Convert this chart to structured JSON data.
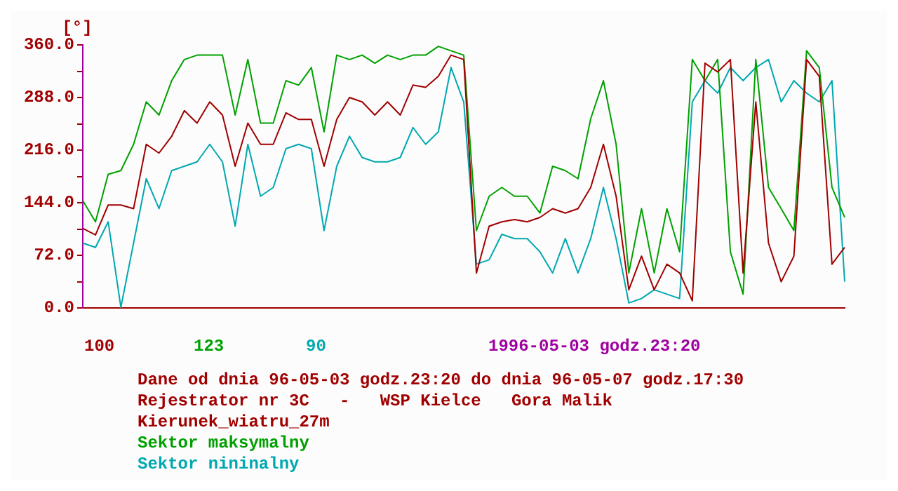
{
  "chart_data": {
    "type": "line",
    "title": "Dane od dnia 96-05-03 godz.23:20 do dnia 96-05-07 godz.17:30",
    "subtitle": "Rejestrator nr 3C   -   WSP Kielce   Gora Malik",
    "ylabel": "[°]",
    "annotations": [
      "100",
      "123",
      "90",
      "1996-05-03 godz.23:20"
    ],
    "categories": [
      null,
      null,
      null,
      null,
      null,
      null,
      null,
      null,
      null,
      null,
      null,
      null,
      null,
      null,
      null,
      null,
      null,
      null,
      null,
      null,
      null,
      null,
      null,
      null,
      null,
      null,
      null,
      null,
      null,
      null,
      null,
      null,
      null,
      null,
      null,
      null,
      null,
      null,
      null,
      null,
      null,
      null,
      null,
      null,
      null,
      null,
      null,
      null,
      null,
      null,
      null,
      null,
      null,
      null,
      null,
      null,
      null,
      null,
      null,
      null,
      null
    ],
    "ylim": [
      0,
      360
    ],
    "yticks": [
      {
        "value": 0,
        "label": "0.0"
      },
      {
        "value": 36,
        "label": null
      },
      {
        "value": 72,
        "label": "72.0"
      },
      {
        "value": 108,
        "label": null
      },
      {
        "value": 144,
        "label": "144.0"
      },
      {
        "value": 180,
        "label": null
      },
      {
        "value": 216,
        "label": "216.0"
      },
      {
        "value": 252,
        "label": null
      },
      {
        "value": 288,
        "label": "288.0"
      },
      {
        "value": 324,
        "label": null
      },
      {
        "value": 360,
        "label": "360.0"
      }
    ],
    "grid": false,
    "legend": "bottom",
    "marker": "none",
    "line_style": "solid",
    "series": [
      {
        "name": "Kierunek_wiatru_27m",
        "color": "#a00000",
        "values": [
          109,
          100,
          141,
          141,
          136,
          224,
          212,
          235,
          270,
          253,
          282,
          264,
          194,
          253,
          224,
          224,
          267,
          258,
          258,
          194,
          258,
          288,
          282,
          264,
          282,
          264,
          305,
          302,
          317,
          346,
          340,
          48,
          112,
          118,
          121,
          118,
          124,
          136,
          130,
          136,
          165,
          224,
          153,
          25,
          71,
          25,
          60,
          48,
          10,
          335,
          323,
          340,
          48,
          282,
          89,
          36,
          71,
          340,
          317,
          60,
          83
        ]
      },
      {
        "name": "Sektor maksymalny",
        "color": "#00a000",
        "values": [
          147,
          118,
          183,
          188,
          224,
          282,
          264,
          311,
          340,
          346,
          346,
          346,
          264,
          340,
          253,
          253,
          311,
          305,
          329,
          241,
          346,
          340,
          346,
          335,
          346,
          340,
          346,
          346,
          358,
          352,
          346,
          106,
          153,
          165,
          153,
          153,
          130,
          194,
          188,
          177,
          259,
          311,
          224,
          48,
          136,
          48,
          136,
          77,
          340,
          311,
          340,
          77,
          19,
          340,
          165,
          136,
          106,
          352,
          329,
          165,
          124
        ]
      },
      {
        "name": "Sektor nininalny",
        "color": "#00a8b0",
        "values": [
          89,
          83,
          118,
          1,
          89,
          177,
          136,
          188,
          194,
          200,
          224,
          200,
          112,
          224,
          153,
          165,
          218,
          224,
          218,
          106,
          194,
          235,
          206,
          200,
          200,
          206,
          247,
          224,
          241,
          329,
          282,
          60,
          66,
          101,
          95,
          95,
          77,
          48,
          95,
          48,
          95,
          165,
          95,
          7,
          13,
          25,
          19,
          13,
          282,
          311,
          294,
          329,
          311,
          329,
          340,
          282,
          311,
          294,
          282,
          311,
          36
        ]
      }
    ]
  }
}
